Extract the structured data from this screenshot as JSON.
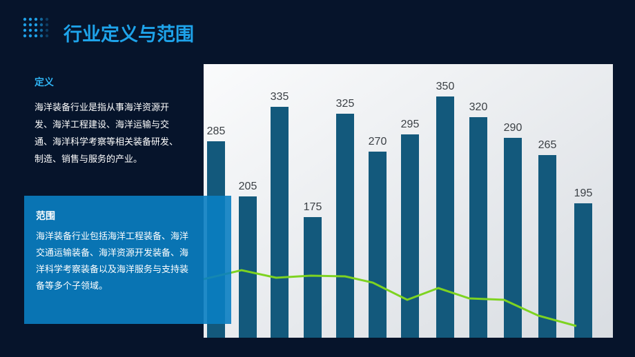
{
  "header": {
    "title": "行业定义与范围"
  },
  "sections": [
    {
      "heading": "定义",
      "body": "海洋装备行业是指从事海洋资源开发、海洋工程建设、海洋运输与交通、海洋科学考察等相关装备研发、制造、销售与服务的产业。"
    },
    {
      "heading": "范围",
      "body": "海洋装备行业包括海洋工程装备、海洋交通运输装备、海洋资源开发装备、海洋科学考察装备以及海洋服务与支持装备等多个子领域。"
    }
  ],
  "photo": {
    "type": "bar",
    "values": [
      285,
      205,
      335,
      175,
      325,
      270,
      295,
      350,
      320,
      290,
      265,
      195
    ]
  }
}
